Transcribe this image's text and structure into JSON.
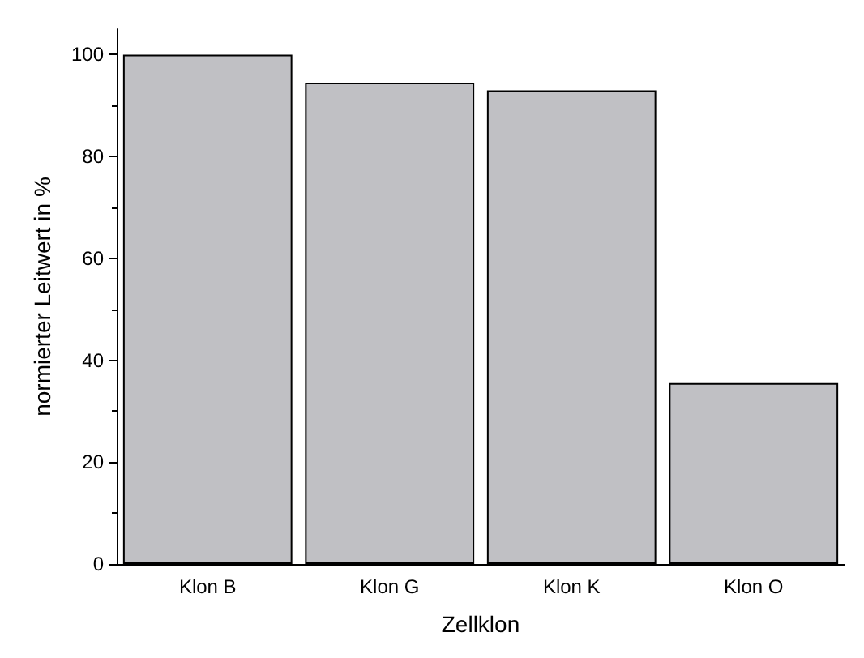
{
  "chart_data": {
    "type": "bar",
    "xlabel": "Zellklon",
    "ylabel": "normierter Leitwert in %",
    "categories": [
      "Klon B",
      "Klon G",
      "Klon K",
      "Klon O"
    ],
    "values": [
      100,
      94.5,
      93,
      35.5
    ],
    "color": "#c0c0c4",
    "ylim": [
      0,
      105
    ],
    "yticks": [
      0,
      20,
      40,
      60,
      80,
      100
    ],
    "grid": false
  }
}
